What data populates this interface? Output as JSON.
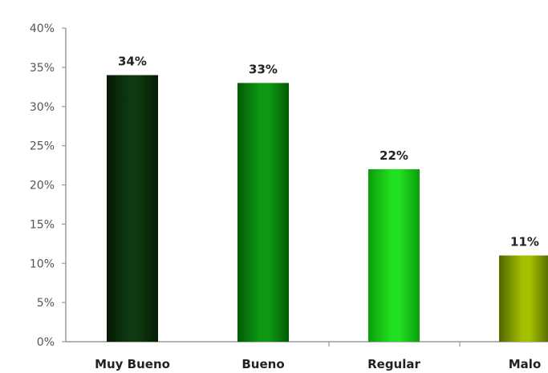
{
  "chart_data": {
    "type": "bar",
    "categories": [
      "Muy Bueno",
      "Bueno",
      "Regular",
      "Malo"
    ],
    "values": [
      34,
      33,
      22,
      11
    ],
    "data_labels": [
      "34%",
      "33%",
      "22%",
      "11%"
    ],
    "y_ticks": [
      "0%",
      "5%",
      "10%",
      "15%",
      "20%",
      "25%",
      "30%",
      "35%",
      "40%"
    ],
    "ylim": [
      0,
      40
    ],
    "grid": false,
    "colors": [
      "#0f3a0f",
      "#0c9a14",
      "#22e022",
      "#a6c000"
    ],
    "gradient_edges": [
      "#051a05",
      "#035a05",
      "#0a9e0a",
      "#4f6600"
    ]
  }
}
